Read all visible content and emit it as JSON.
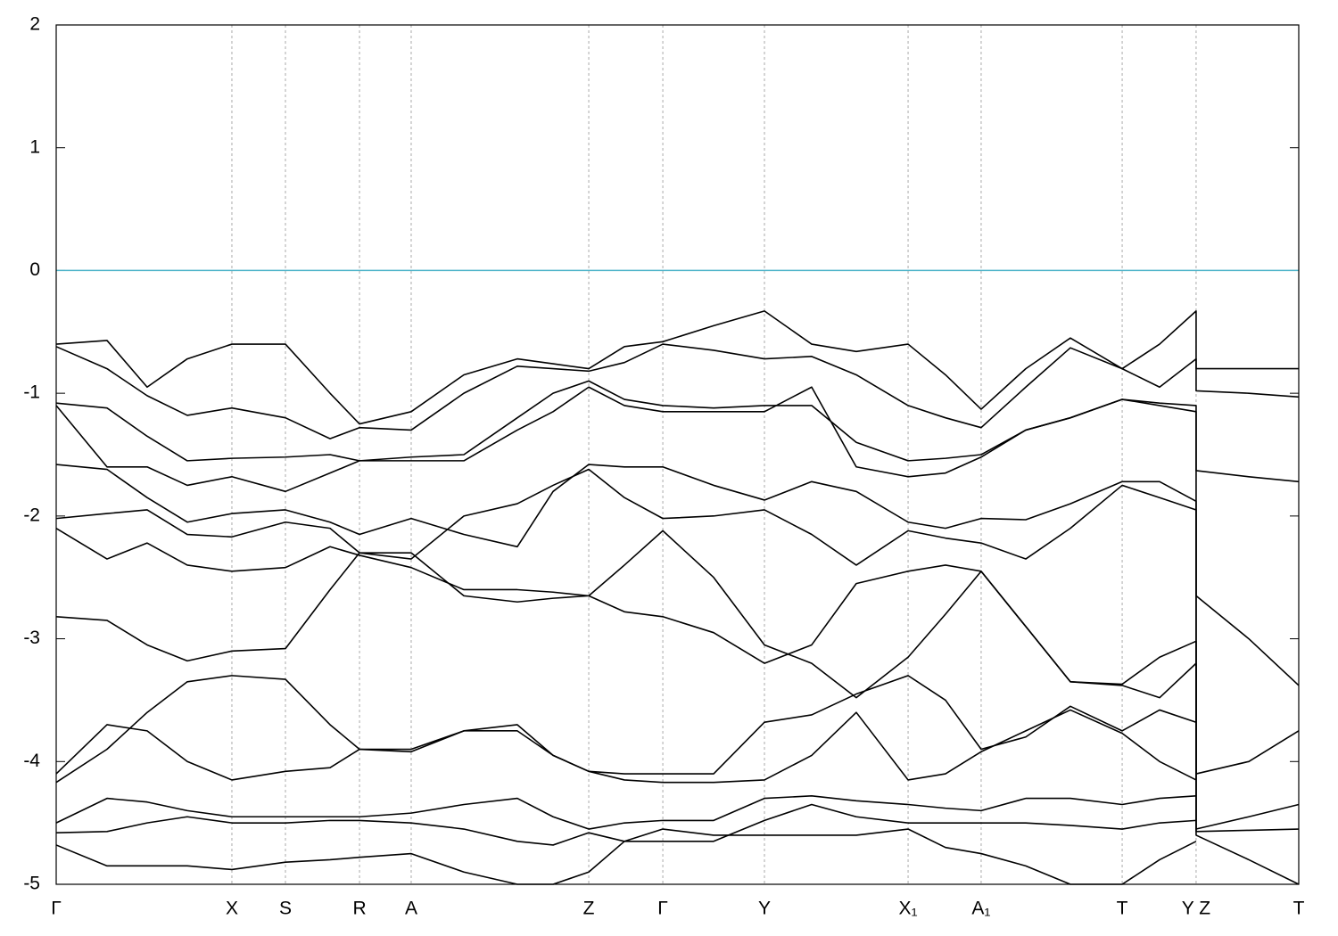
{
  "chart_data": {
    "type": "line",
    "x": [
      0,
      0.0409,
      0.0732,
      0.1055,
      0.1414,
      0.1845,
      0.2204,
      0.2441,
      0.2857,
      0.3281,
      0.3711,
      0.3999,
      0.4286,
      0.4573,
      0.4882,
      0.5291,
      0.57,
      0.608,
      0.6439,
      0.6856,
      0.7157,
      0.7444,
      0.7803,
      0.8162,
      0.8579,
      0.888,
      0.9174,
      0.9174,
      0.9598,
      1
    ],
    "xlim": [
      0,
      1
    ],
    "xticks": [
      {
        "value": 0,
        "label": "Γ"
      },
      {
        "value": 0.1414,
        "label": "X"
      },
      {
        "value": 0.1845,
        "label": "S"
      },
      {
        "value": 0.2441,
        "label": "R"
      },
      {
        "value": 0.2857,
        "label": "A"
      },
      {
        "value": 0.4286,
        "label": "Z"
      },
      {
        "value": 0.4882,
        "label": "Γ"
      },
      {
        "value": 0.57,
        "label": "Y"
      },
      {
        "value": 0.6856,
        "label": "X₁"
      },
      {
        "value": 0.7444,
        "label": "A₁"
      },
      {
        "value": 0.8579,
        "label": "T"
      },
      {
        "value": 0.9174,
        "label": "Y Z"
      },
      {
        "value": 1,
        "label": "T"
      }
    ],
    "ylim": [
      -5,
      2
    ],
    "yticks": [
      -5,
      -4,
      -3,
      -2,
      -1,
      0,
      1,
      2
    ],
    "grid": true,
    "fermi_level": 0,
    "fermi_color": "#4eb3c9",
    "series": [
      {
        "color": "#000000",
        "values": [
          -0.6,
          -0.57,
          -0.95,
          -0.72,
          -0.6,
          -0.6,
          -1.0,
          -1.25,
          -1.15,
          -0.85,
          -0.72,
          -0.76,
          -0.8,
          -0.62,
          -0.58,
          -0.45,
          -0.33,
          -0.6,
          -0.66,
          -0.6,
          -0.85,
          -1.13,
          -0.8,
          -0.55,
          -0.8,
          -0.6,
          -0.33,
          -0.8,
          -0.8,
          -0.8
        ]
      },
      {
        "color": "#000000",
        "values": [
          -0.62,
          -0.8,
          -1.02,
          -1.18,
          -1.12,
          -1.2,
          -1.37,
          -1.28,
          -1.3,
          -1.0,
          -0.78,
          -0.8,
          -0.82,
          -0.75,
          -0.6,
          -0.65,
          -0.72,
          -0.7,
          -0.85,
          -1.1,
          -1.2,
          -1.28,
          -0.95,
          -0.63,
          -0.8,
          -0.95,
          -0.72,
          -0.98,
          -1.0,
          -1.03
        ]
      },
      {
        "color": "#000000",
        "values": [
          -1.08,
          -1.12,
          -1.35,
          -1.55,
          -1.53,
          -1.52,
          -1.5,
          -1.55,
          -1.52,
          -1.5,
          -1.2,
          -1.0,
          -0.9,
          -1.05,
          -1.1,
          -1.12,
          -1.1,
          -1.1,
          -1.4,
          -1.55,
          -1.53,
          -1.5,
          -1.3,
          -1.2,
          -1.05,
          -1.08,
          -1.1,
          -1.63,
          -1.68,
          -1.72
        ]
      },
      {
        "color": "#000000",
        "values": [
          -1.1,
          -1.6,
          -1.6,
          -1.75,
          -1.68,
          -1.8,
          -1.65,
          -1.55,
          -1.55,
          -1.55,
          -1.3,
          -1.15,
          -0.95,
          -1.1,
          -1.15,
          -1.15,
          -1.15,
          -0.95,
          -1.6,
          -1.68,
          -1.65,
          -1.52,
          -1.3,
          -1.2,
          -1.05,
          -1.1,
          -1.15,
          -2.65,
          -3.0,
          -3.38
        ]
      },
      {
        "color": "#000000",
        "values": [
          -1.58,
          -1.62,
          -1.85,
          -2.05,
          -1.98,
          -1.95,
          -2.05,
          -2.15,
          -2.02,
          -2.15,
          -2.25,
          -1.8,
          -1.58,
          -1.6,
          -1.6,
          -1.75,
          -1.87,
          -1.72,
          -1.8,
          -2.05,
          -2.1,
          -2.02,
          -2.03,
          -1.9,
          -1.72,
          -1.72,
          -1.88,
          -4.1,
          -4.0,
          -3.75
        ]
      },
      {
        "color": "#000000",
        "values": [
          -2.02,
          -1.98,
          -1.95,
          -2.15,
          -2.17,
          -2.05,
          -2.1,
          -2.3,
          -2.35,
          -2.0,
          -1.9,
          -1.75,
          -1.62,
          -1.85,
          -2.02,
          -2.0,
          -1.95,
          -2.15,
          -2.4,
          -2.12,
          -2.18,
          -2.22,
          -2.35,
          -2.1,
          -1.75,
          -1.85,
          -1.95,
          -4.55,
          -4.45,
          -4.35
        ]
      },
      {
        "color": "#000000",
        "values": [
          -2.1,
          -2.35,
          -2.22,
          -2.4,
          -2.45,
          -2.42,
          -2.25,
          -2.32,
          -2.42,
          -2.6,
          -2.6,
          -2.62,
          -2.65,
          -2.78,
          -2.82,
          -2.95,
          -3.2,
          -3.05,
          -2.55,
          -2.45,
          -2.4,
          -2.45,
          -2.9,
          -3.35,
          -3.37,
          -3.15,
          -3.02,
          -4.57,
          -4.56,
          -4.55
        ]
      },
      {
        "color": "#000000",
        "values": [
          -2.82,
          -2.85,
          -3.05,
          -3.18,
          -3.1,
          -3.08,
          -2.6,
          -2.3,
          -2.3,
          -2.65,
          -2.7,
          -2.67,
          -2.65,
          -2.4,
          -2.12,
          -2.5,
          -3.05,
          -3.2,
          -3.48,
          -3.15,
          -2.8,
          -2.45,
          -2.9,
          -3.35,
          -3.38,
          -3.48,
          -3.2,
          -4.6,
          -4.8,
          -5.0
        ]
      },
      {
        "color": "#000000",
        "values": [
          -4.1,
          -3.7,
          -3.75,
          -4.0,
          -4.15,
          -4.08,
          -4.05,
          -3.9,
          -3.92,
          -3.75,
          -3.7,
          -3.95,
          -4.08,
          -4.1,
          -4.1,
          -4.1,
          -3.68,
          -3.62,
          -3.45,
          -3.3,
          -3.5,
          -3.9,
          -3.8,
          -3.55,
          -3.75,
          -3.58,
          -3.68,
          null,
          null,
          null
        ]
      },
      {
        "color": "#000000",
        "values": [
          -4.17,
          -3.9,
          -3.6,
          -3.35,
          -3.3,
          -3.33,
          -3.7,
          -3.9,
          -3.9,
          -3.75,
          -3.75,
          -3.95,
          -4.08,
          -4.15,
          -4.17,
          -4.17,
          -4.15,
          -3.95,
          -3.6,
          -4.15,
          -4.1,
          -3.92,
          -3.75,
          -3.58,
          -3.77,
          -4.0,
          -4.15,
          null,
          null,
          null
        ]
      },
      {
        "color": "#000000",
        "values": [
          -4.5,
          -4.3,
          -4.33,
          -4.4,
          -4.45,
          -4.45,
          -4.45,
          -4.45,
          -4.42,
          -4.35,
          -4.3,
          -4.45,
          -4.55,
          -4.5,
          -4.48,
          -4.48,
          -4.3,
          -4.28,
          -4.32,
          -4.35,
          -4.38,
          -4.4,
          -4.3,
          -4.3,
          -4.35,
          -4.3,
          -4.28,
          null,
          null,
          null
        ]
      },
      {
        "color": "#000000",
        "values": [
          -4.58,
          -4.57,
          -4.5,
          -4.45,
          -4.5,
          -4.5,
          -4.48,
          -4.48,
          -4.5,
          -4.55,
          -4.65,
          -4.68,
          -4.58,
          -4.65,
          -4.65,
          -4.65,
          -4.48,
          -4.35,
          -4.45,
          -4.5,
          -4.5,
          -4.5,
          -4.5,
          -4.52,
          -4.55,
          -4.5,
          -4.48,
          null,
          null,
          null
        ]
      },
      {
        "color": "#000000",
        "values": [
          -4.68,
          -4.85,
          -4.85,
          -4.85,
          -4.88,
          -4.82,
          -4.8,
          -4.78,
          -4.75,
          -4.9,
          -5.0,
          -5.0,
          -4.9,
          -4.65,
          -4.55,
          -4.6,
          -4.6,
          -4.6,
          -4.6,
          -4.55,
          -4.7,
          -4.75,
          -4.85,
          -5.0,
          -5.0,
          -4.8,
          -4.65,
          null,
          null,
          null
        ]
      }
    ]
  }
}
